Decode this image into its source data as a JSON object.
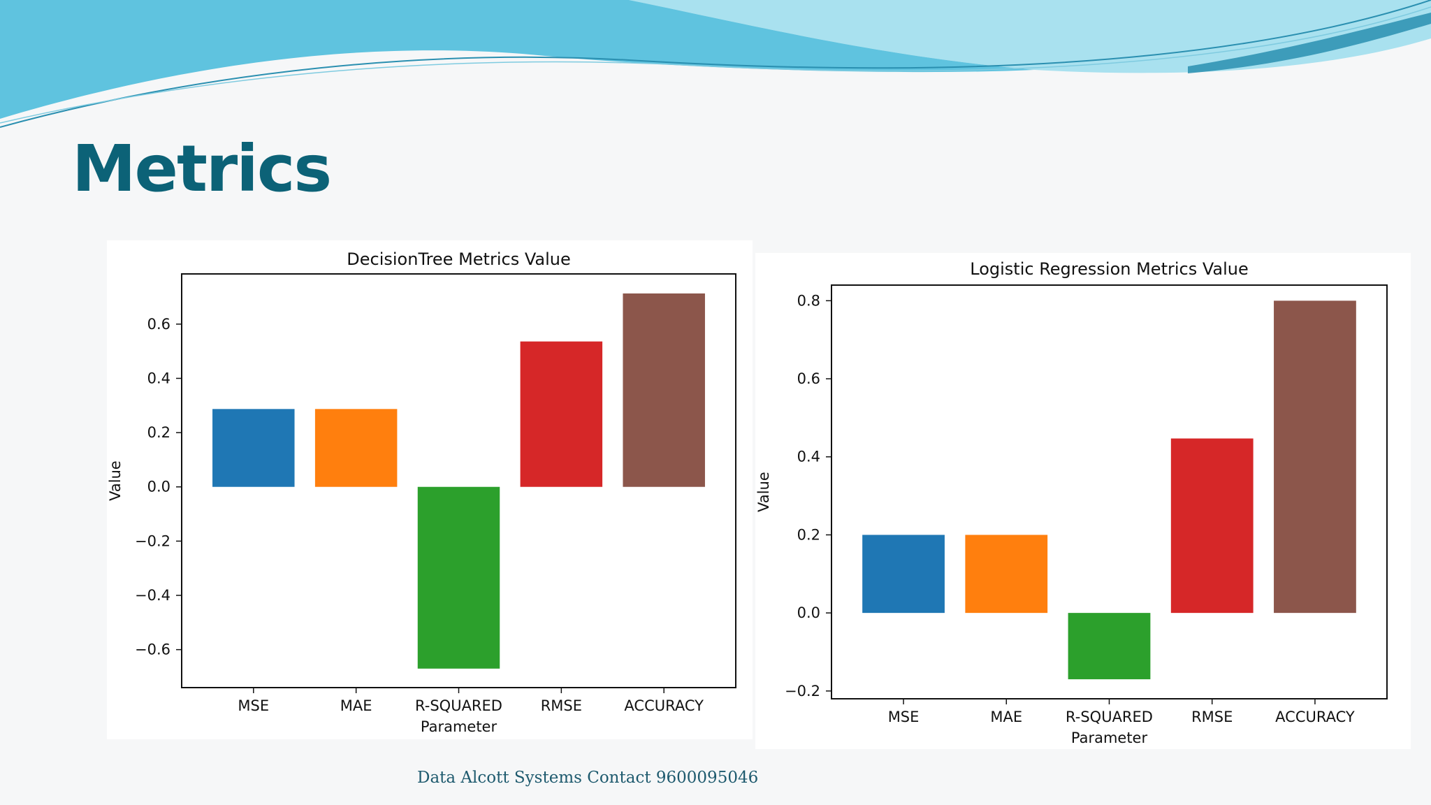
{
  "slide": {
    "title": "Metrics",
    "footer": "Data Alcott Systems Contact 9600095046"
  },
  "colors": {
    "title": "#0c6277",
    "wave_dark": "#5fc3df",
    "wave_light": "#a9e1ef",
    "wave_line": "#2a8fb0",
    "bars": [
      "#1f77b4",
      "#ff7f0e",
      "#2ca02c",
      "#d62728",
      "#8c564b"
    ]
  },
  "chart_data": [
    {
      "type": "bar",
      "title": "DecisionTree Metrics Value",
      "xlabel": "Parameter",
      "ylabel": "Value",
      "categories": [
        "MSE",
        "MAE",
        "R-SQUARED",
        "RMSE",
        "ACCURACY"
      ],
      "values": [
        0.287,
        0.287,
        -0.67,
        0.536,
        0.713
      ],
      "ylim": [
        -0.74,
        0.785
      ],
      "yticks": [
        0.6,
        0.4,
        0.2,
        0.0,
        -0.2,
        -0.4,
        -0.6
      ],
      "ytick_labels": [
        "0.6",
        "0.4",
        "0.2",
        "0.0",
        "−0.2",
        "−0.4",
        "−0.6"
      ],
      "grid": false,
      "legend": false
    },
    {
      "type": "bar",
      "title": "Logistic Regression Metrics Value",
      "xlabel": "Parameter",
      "ylabel": "Value",
      "categories": [
        "MSE",
        "MAE",
        "R-SQUARED",
        "RMSE",
        "ACCURACY"
      ],
      "values": [
        0.2,
        0.2,
        -0.17,
        0.447,
        0.8
      ],
      "ylim": [
        -0.22,
        0.84
      ],
      "yticks": [
        0.8,
        0.6,
        0.4,
        0.2,
        0.0,
        -0.2
      ],
      "ytick_labels": [
        "0.8",
        "0.6",
        "0.4",
        "0.2",
        "0.0",
        "−0.2"
      ],
      "grid": false,
      "legend": false
    }
  ]
}
